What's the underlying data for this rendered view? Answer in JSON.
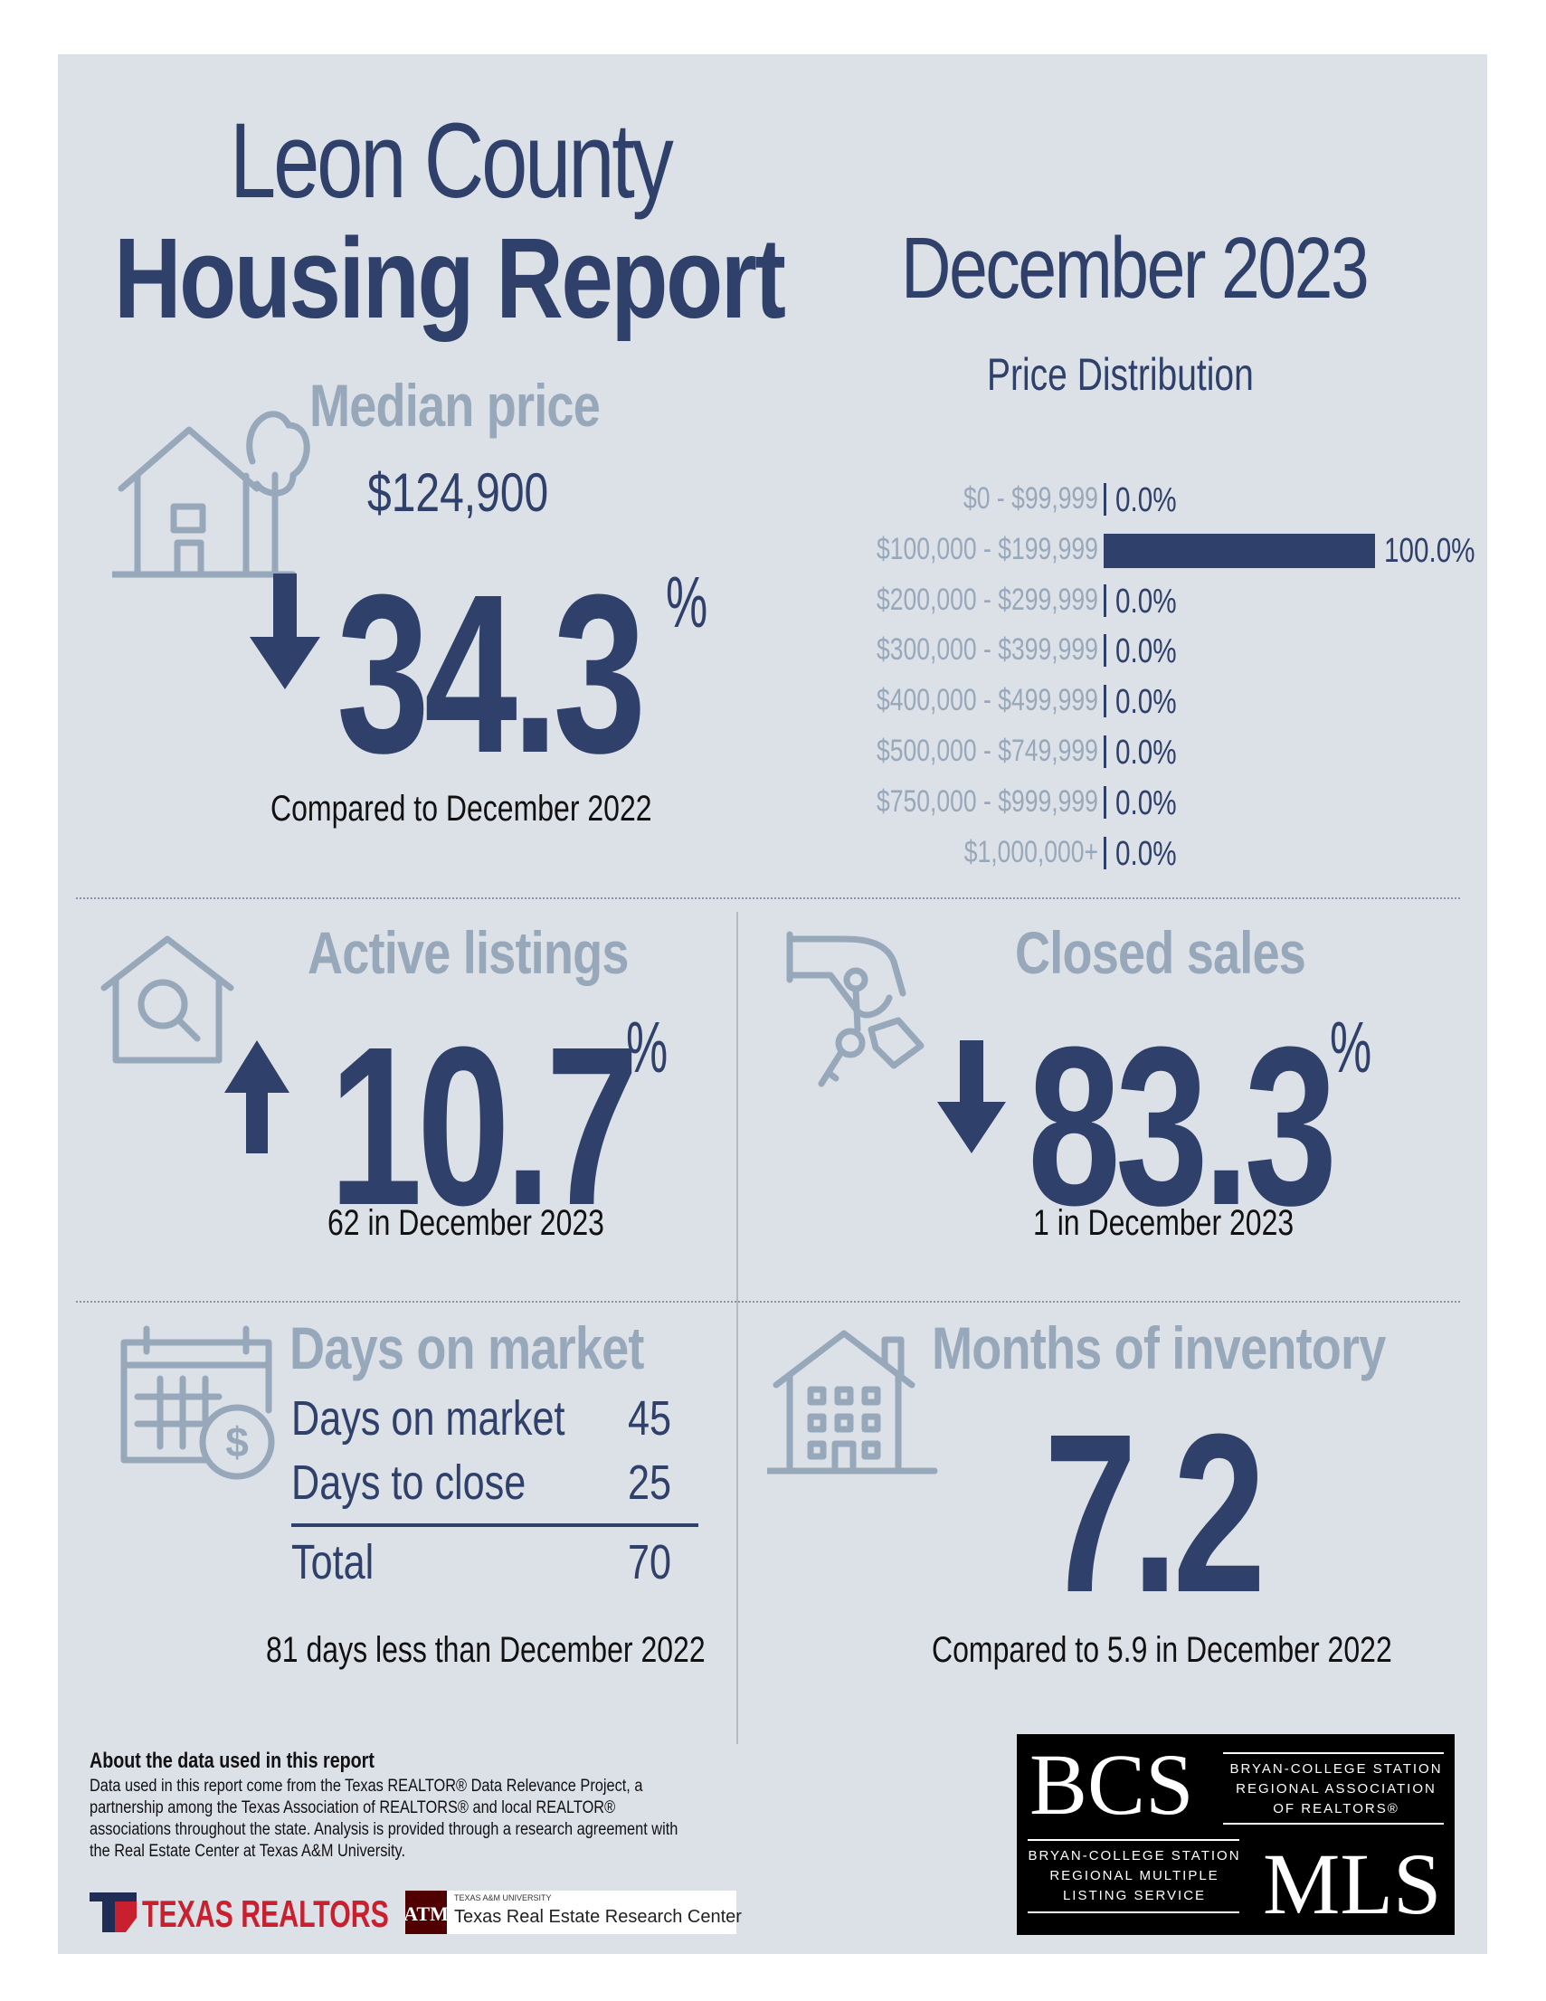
{
  "header": {
    "county": "Leon County",
    "report": "Housing Report",
    "month": "December 2023"
  },
  "median_price": {
    "label": "Median price",
    "value": "$124,900",
    "change": "34.3",
    "direction": "down",
    "pct_sign": "%",
    "caption": "Compared to December 2022"
  },
  "price_distribution": {
    "title": "Price Distribution",
    "rows": [
      {
        "label": "$0 - $99,999",
        "pct": 0.0,
        "text": "0.0%"
      },
      {
        "label": "$100,000 - $199,999",
        "pct": 100.0,
        "text": "100.0%"
      },
      {
        "label": "$200,000 - $299,999",
        "pct": 0.0,
        "text": "0.0%"
      },
      {
        "label": "$300,000 - $399,999",
        "pct": 0.0,
        "text": "0.0%"
      },
      {
        "label": "$400,000 - $499,999",
        "pct": 0.0,
        "text": "0.0%"
      },
      {
        "label": "$500,000 - $749,999",
        "pct": 0.0,
        "text": "0.0%"
      },
      {
        "label": "$750,000 - $999,999",
        "pct": 0.0,
        "text": "0.0%"
      },
      {
        "label": "$1,000,000+",
        "pct": 0.0,
        "text": "0.0%"
      }
    ]
  },
  "active_listings": {
    "label": "Active listings",
    "change": "10.7",
    "direction": "up",
    "pct_sign": "%",
    "caption": "62 in December 2023"
  },
  "closed_sales": {
    "label": "Closed sales",
    "change": "83.3",
    "direction": "down",
    "pct_sign": "%",
    "caption": "1 in December 2023"
  },
  "days_on_market": {
    "label": "Days on market",
    "rows": [
      {
        "label": "Days on market",
        "value": "45"
      },
      {
        "label": "Days to close",
        "value": "25"
      }
    ],
    "total_label": "Total",
    "total_value": "70",
    "caption": "81 days less than December 2022"
  },
  "months_inventory": {
    "label": "Months of inventory",
    "value": "7.2",
    "caption": "Compared to 5.9 in December 2022"
  },
  "about": {
    "heading": "About the data used in this report",
    "text": "Data used in this report come from the Texas REALTOR® Data Relevance Project, a partnership among the Texas Association of REALTORS® and local REALTOR® associations throughout the state. Analysis is provided through a research agreement with the Real Estate Center at Texas A&M University."
  },
  "logos": {
    "texas_realtors": "TEXAS REALTORS",
    "tamu_small": "TEXAS A&M UNIVERSITY",
    "tamu_center": "Texas Real Estate Research Center",
    "bcs_big": "BCS",
    "bcs_assoc": [
      "BRYAN-COLLEGE STATION",
      "REGIONAL ASSOCIATION",
      "OF REALTORS®"
    ],
    "mls_big": "MLS",
    "mls_text": [
      "BRYAN-COLLEGE STATION",
      "REGIONAL MULTIPLE",
      "LISTING SERVICE"
    ]
  },
  "colors": {
    "navy": "#2f416a",
    "gray": "#98a8bb",
    "panel": "#dce0e7"
  }
}
